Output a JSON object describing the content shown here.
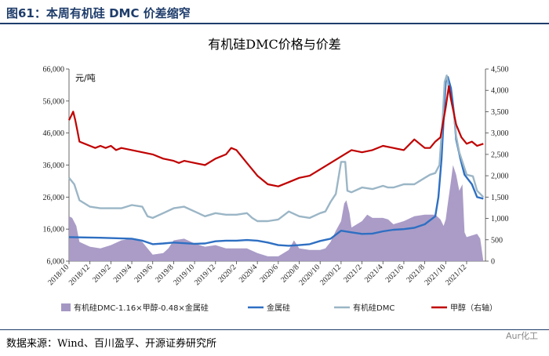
{
  "figure_label": "图61：本周有机硅 DMC 价差缩窄",
  "source_text": "数据来源：Wind、百川盈孚、开源证券研究所",
  "watermark": "Aur化工",
  "chart_data": {
    "type": "line",
    "title": "有机硅DMC价格与价差",
    "unit_left": "元/吨",
    "y_left": {
      "min": 6000,
      "max": 66000,
      "ticks": [
        "6,000",
        "16,000",
        "26,000",
        "36,000",
        "46,000",
        "56,000",
        "66,000"
      ],
      "tick_values": [
        6000,
        16000,
        26000,
        36000,
        46000,
        56000,
        66000
      ]
    },
    "y_right": {
      "min": 0,
      "max": 4500,
      "ticks": [
        "0",
        "500",
        "1,000",
        "1,500",
        "2,000",
        "2,500",
        "3,000",
        "3,500",
        "4,000",
        "4,500"
      ],
      "tick_values": [
        0,
        500,
        1000,
        1500,
        2000,
        2500,
        3000,
        3500,
        4000,
        4500
      ]
    },
    "categories": [
      "2018/10",
      "2018/12",
      "2019/2",
      "2019/4",
      "2019/6",
      "2019/8",
      "2019/10",
      "2019/12",
      "2020/2",
      "2020/4",
      "2020/6",
      "2020/8",
      "2020/10",
      "2020/12",
      "2021/2",
      "2021/4",
      "2021/6",
      "2021/8",
      "2021/10",
      "2021/12"
    ],
    "x_positions": [
      0,
      2,
      4,
      6,
      8,
      10,
      12,
      14,
      16,
      18,
      20,
      22,
      24,
      26,
      28,
      30,
      32,
      34,
      36,
      38
    ],
    "x_range": [
      0,
      39.8
    ],
    "series": [
      {
        "name": "有机硅DMC-1.16×甲醇-0.48×金属硅",
        "type": "area",
        "axis": "left",
        "color": "#a597c4",
        "points": [
          [
            0,
            20000
          ],
          [
            0.3,
            19500
          ],
          [
            0.7,
            17000
          ],
          [
            1.0,
            12000
          ],
          [
            2,
            10500
          ],
          [
            3,
            10000
          ],
          [
            4,
            11000
          ],
          [
            5,
            12500
          ],
          [
            6,
            13000
          ],
          [
            7,
            12000
          ],
          [
            7.5,
            10000
          ],
          [
            8,
            8000
          ],
          [
            9,
            8500
          ],
          [
            9.5,
            10000
          ],
          [
            10,
            12500
          ],
          [
            11,
            13000
          ],
          [
            12,
            11500
          ],
          [
            13,
            10500
          ],
          [
            14,
            11000
          ],
          [
            15,
            10000
          ],
          [
            16,
            10000
          ],
          [
            17,
            10000
          ],
          [
            18,
            8500
          ],
          [
            19,
            7500
          ],
          [
            20,
            7500
          ],
          [
            21,
            9500
          ],
          [
            21.5,
            12500
          ],
          [
            22,
            10000
          ],
          [
            23,
            9500
          ],
          [
            24,
            9500
          ],
          [
            24.5,
            10000
          ],
          [
            25,
            12000
          ],
          [
            25.5,
            15500
          ],
          [
            26,
            18500
          ],
          [
            26.3,
            24000
          ],
          [
            26.5,
            25000
          ],
          [
            26.8,
            21000
          ],
          [
            27,
            16500
          ],
          [
            28,
            18500
          ],
          [
            28.5,
            20500
          ],
          [
            29,
            19500
          ],
          [
            30,
            19500
          ],
          [
            30.5,
            19000
          ],
          [
            31,
            17500
          ],
          [
            32,
            18500
          ],
          [
            33,
            20000
          ],
          [
            34,
            20500
          ],
          [
            35,
            20500
          ],
          [
            35.5,
            19000
          ],
          [
            35.8,
            17000
          ],
          [
            36,
            19000
          ],
          [
            36.2,
            24000
          ],
          [
            36.5,
            31000
          ],
          [
            36.7,
            36000
          ],
          [
            37,
            33000
          ],
          [
            37.3,
            28000
          ],
          [
            37.6,
            30000
          ],
          [
            37.8,
            15000
          ],
          [
            38,
            13500
          ],
          [
            38.5,
            14000
          ],
          [
            39,
            14500
          ],
          [
            39.3,
            13000
          ],
          [
            39.6,
            6000
          ]
        ]
      },
      {
        "name": "金属硅",
        "type": "line",
        "axis": "left",
        "color": "#2e6fc2",
        "points": [
          [
            0,
            13500
          ],
          [
            3,
            13300
          ],
          [
            6,
            13000
          ],
          [
            7,
            12400
          ],
          [
            8,
            11300
          ],
          [
            9,
            11500
          ],
          [
            10,
            11800
          ],
          [
            12,
            11400
          ],
          [
            13,
            11500
          ],
          [
            14,
            12200
          ],
          [
            15,
            12400
          ],
          [
            16,
            12400
          ],
          [
            17,
            12600
          ],
          [
            18,
            12400
          ],
          [
            19,
            11800
          ],
          [
            20,
            11000
          ],
          [
            21,
            10800
          ],
          [
            22,
            11000
          ],
          [
            23,
            11300
          ],
          [
            24,
            12300
          ],
          [
            25,
            13000
          ],
          [
            26,
            15500
          ],
          [
            27,
            15000
          ],
          [
            28,
            14500
          ],
          [
            29,
            14600
          ],
          [
            30,
            15300
          ],
          [
            31,
            15800
          ],
          [
            32,
            16000
          ],
          [
            33,
            16400
          ],
          [
            34,
            17500
          ],
          [
            35,
            20000
          ],
          [
            35.3,
            26000
          ],
          [
            35.6,
            38000
          ],
          [
            35.8,
            50000
          ],
          [
            36.0,
            62000
          ],
          [
            36.2,
            63500
          ],
          [
            36.5,
            60000
          ],
          [
            36.8,
            52000
          ],
          [
            37,
            44000
          ],
          [
            37.4,
            38000
          ],
          [
            37.8,
            33000
          ],
          [
            38.5,
            30000
          ],
          [
            39,
            26000
          ],
          [
            39.6,
            25500
          ]
        ]
      },
      {
        "name": "有机硅DMC",
        "type": "line",
        "axis": "left",
        "color": "#9bb6c6",
        "points": [
          [
            0,
            32000
          ],
          [
            0.5,
            30000
          ],
          [
            1,
            25000
          ],
          [
            2,
            23000
          ],
          [
            3,
            22500
          ],
          [
            4,
            22500
          ],
          [
            5,
            22500
          ],
          [
            6,
            23500
          ],
          [
            7,
            23000
          ],
          [
            7.5,
            20000
          ],
          [
            8,
            19500
          ],
          [
            9,
            21000
          ],
          [
            10,
            22500
          ],
          [
            11,
            23000
          ],
          [
            12,
            21500
          ],
          [
            13,
            20000
          ],
          [
            14,
            21000
          ],
          [
            15,
            20500
          ],
          [
            16,
            20500
          ],
          [
            17,
            21000
          ],
          [
            17.5,
            19500
          ],
          [
            18,
            18500
          ],
          [
            19,
            18500
          ],
          [
            20,
            19000
          ],
          [
            21,
            21500
          ],
          [
            22,
            20000
          ],
          [
            23,
            19500
          ],
          [
            24,
            21000
          ],
          [
            24.5,
            21500
          ],
          [
            25,
            24500
          ],
          [
            25.5,
            27000
          ],
          [
            26,
            37000
          ],
          [
            26.4,
            37000
          ],
          [
            26.6,
            28000
          ],
          [
            27,
            27500
          ],
          [
            28,
            29000
          ],
          [
            29,
            28500
          ],
          [
            30,
            29500
          ],
          [
            30.5,
            29000
          ],
          [
            31,
            29000
          ],
          [
            32,
            30000
          ],
          [
            33,
            30000
          ],
          [
            34,
            32000
          ],
          [
            34.5,
            33000
          ],
          [
            35,
            33500
          ],
          [
            35.4,
            36000
          ],
          [
            35.7,
            50000
          ],
          [
            35.9,
            62000
          ],
          [
            36.1,
            64000
          ],
          [
            36.4,
            58000
          ],
          [
            36.8,
            52000
          ],
          [
            37,
            45000
          ],
          [
            37.3,
            40000
          ],
          [
            37.6,
            37000
          ],
          [
            38,
            33000
          ],
          [
            38.6,
            32500
          ],
          [
            39,
            28000
          ],
          [
            39.6,
            26000
          ]
        ]
      },
      {
        "name": "甲醇（右轴）",
        "type": "line",
        "axis": "right",
        "color": "#c00000",
        "points": [
          [
            0,
            3300
          ],
          [
            0.2,
            3400
          ],
          [
            0.4,
            3500
          ],
          [
            0.6,
            3300
          ],
          [
            0.8,
            3050
          ],
          [
            1,
            2800
          ],
          [
            1.5,
            2750
          ],
          [
            2,
            2700
          ],
          [
            2.5,
            2650
          ],
          [
            3,
            2700
          ],
          [
            3.5,
            2650
          ],
          [
            4,
            2700
          ],
          [
            4.5,
            2600
          ],
          [
            5,
            2650
          ],
          [
            6,
            2600
          ],
          [
            7,
            2550
          ],
          [
            8,
            2500
          ],
          [
            9,
            2400
          ],
          [
            10,
            2350
          ],
          [
            10.5,
            2300
          ],
          [
            11,
            2350
          ],
          [
            12,
            2300
          ],
          [
            13,
            2250
          ],
          [
            14,
            2400
          ],
          [
            15,
            2500
          ],
          [
            15.5,
            2650
          ],
          [
            16,
            2600
          ],
          [
            17,
            2300
          ],
          [
            18,
            2000
          ],
          [
            19,
            1800
          ],
          [
            20,
            1750
          ],
          [
            21,
            1850
          ],
          [
            22,
            1950
          ],
          [
            23,
            2000
          ],
          [
            24,
            2150
          ],
          [
            25,
            2300
          ],
          [
            26,
            2450
          ],
          [
            27,
            2600
          ],
          [
            28,
            2550
          ],
          [
            29,
            2600
          ],
          [
            30,
            2700
          ],
          [
            31,
            2650
          ],
          [
            32,
            2600
          ],
          [
            33,
            2850
          ],
          [
            34,
            2650
          ],
          [
            34.5,
            2650
          ],
          [
            35,
            2800
          ],
          [
            35.5,
            2900
          ],
          [
            36,
            3600
          ],
          [
            36.3,
            4100
          ],
          [
            36.5,
            3800
          ],
          [
            37,
            3200
          ],
          [
            37.5,
            2900
          ],
          [
            38,
            2750
          ],
          [
            38.5,
            2800
          ],
          [
            39,
            2700
          ],
          [
            39.6,
            2750
          ]
        ]
      }
    ],
    "legend": [
      "有机硅DMC-1.16×甲醇-0.48×金属硅",
      "金属硅",
      "有机硅DMC",
      "甲醇（右轴）"
    ],
    "legend_position": "bottom"
  }
}
